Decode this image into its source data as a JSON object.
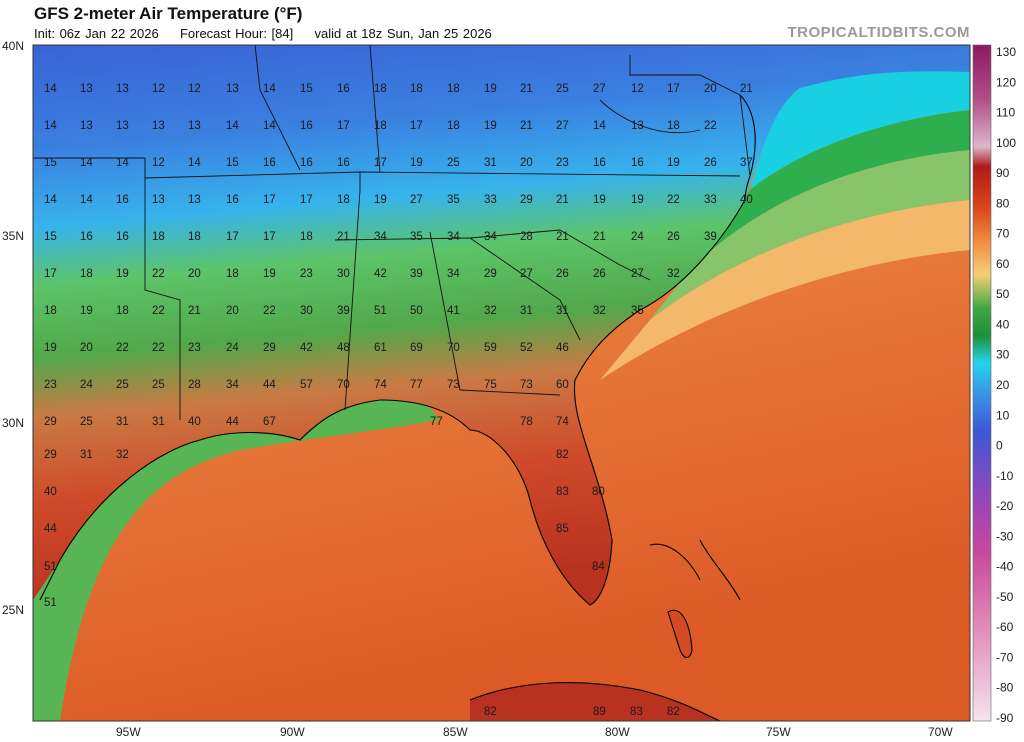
{
  "header": {
    "title": "GFS 2-meter Air Temperature (°F)",
    "init": "Init: 06z Jan 22 2026",
    "forecast_hour": "Forecast Hour: [84]",
    "valid": "valid at 18z Sun, Jan 25 2026",
    "brand": "TROPICALTIDBITS.COM"
  },
  "axes": {
    "lat_labels": [
      "40N",
      "35N",
      "30N",
      "25N"
    ],
    "lon_labels": [
      "95W",
      "90W",
      "85W",
      "80W",
      "75W",
      "70W"
    ]
  },
  "colorbar": {
    "labels": [
      "130",
      "120",
      "110",
      "100",
      "90",
      "80",
      "70",
      "60",
      "50",
      "40",
      "30",
      "20",
      "10",
      "0",
      "-10",
      "-20",
      "-30",
      "-40",
      "-50",
      "-60",
      "-70",
      "-80",
      "-90"
    ],
    "stops": [
      "#8b1a62",
      "#a0246f",
      "#c05a8a",
      "#d9a0c0",
      "#b21f1f",
      "#d2461a",
      "#ea7a3a",
      "#f3bf6a",
      "#41a94a",
      "#1f9a3d",
      "#20d0e8",
      "#3aa0e8",
      "#3b6fd8",
      "#5a56d0",
      "#7a4fc8",
      "#a24ab8",
      "#c04aa8",
      "#d05a9a",
      "#d86aa8",
      "#e08ab8",
      "#e8a8c8",
      "#f0c8dc",
      "#f8e8f0"
    ]
  },
  "colors": {
    "cold": "#3a78dc",
    "cool": "#3ea2ea",
    "mild": "#4bb64a",
    "warm": "#e2713a",
    "hot": "#c5331f",
    "ocean": "#e56b2e"
  },
  "station_values": [
    "14",
    "13",
    "13",
    "12",
    "12",
    "13",
    "14",
    "15",
    "16",
    "18",
    "18",
    "18",
    "19",
    "21",
    "25",
    "27",
    "12",
    "17",
    "20",
    "21",
    "14",
    "13",
    "13",
    "13",
    "13",
    "14",
    "14",
    "16",
    "17",
    "18",
    "17",
    "18",
    "19",
    "21",
    "27",
    "14",
    "13",
    "18",
    "22",
    "15",
    "14",
    "14",
    "12",
    "14",
    "15",
    "16",
    "16",
    "16",
    "17",
    "19",
    "25",
    "31",
    "20",
    "23",
    "16",
    "16",
    "19",
    "26",
    "37",
    "14",
    "14",
    "16",
    "13",
    "13",
    "16",
    "17",
    "17",
    "18",
    "19",
    "27",
    "35",
    "33",
    "29",
    "21",
    "19",
    "19",
    "22",
    "33",
    "40",
    "15",
    "16",
    "16",
    "18",
    "18",
    "17",
    "17",
    "18",
    "21",
    "34",
    "35",
    "34",
    "34",
    "28",
    "21",
    "21",
    "24",
    "26",
    "39",
    "17",
    "18",
    "19",
    "22",
    "20",
    "18",
    "19",
    "23",
    "30",
    "42",
    "39",
    "34",
    "29",
    "27",
    "26",
    "26",
    "27",
    "32",
    "18",
    "19",
    "18",
    "22",
    "21",
    "20",
    "22",
    "30",
    "39",
    "51",
    "50",
    "41",
    "32",
    "31",
    "31",
    "32",
    "35",
    "19",
    "20",
    "22",
    "22",
    "23",
    "24",
    "29",
    "42",
    "48",
    "61",
    "69",
    "70",
    "59",
    "52",
    "46",
    "23",
    "24",
    "25",
    "25",
    "28",
    "34",
    "44",
    "57",
    "70",
    "74",
    "77",
    "73",
    "75",
    "73",
    "60",
    "29",
    "25",
    "31",
    "31",
    "40",
    "44",
    "67",
    "77",
    "78",
    "74",
    "29",
    "31",
    "32",
    "82",
    "83",
    "80",
    "85",
    "84",
    "40",
    "44",
    "51",
    "51",
    "82",
    "89",
    "83",
    "82"
  ]
}
